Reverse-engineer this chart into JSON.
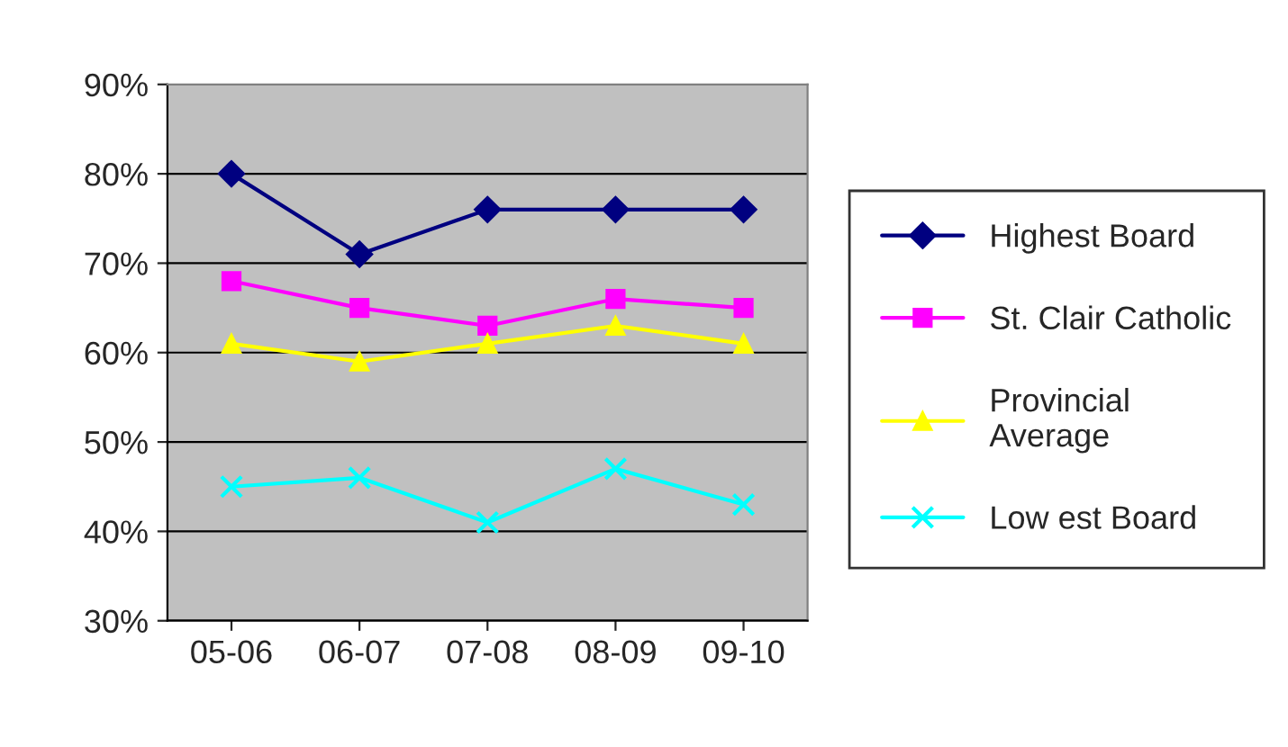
{
  "chart_data": {
    "type": "line",
    "categories": [
      "05-06",
      "06-07",
      "07-08",
      "08-09",
      "09-10"
    ],
    "series": [
      {
        "name": "Highest Board",
        "color": "#000080",
        "marker": "diamond",
        "values": [
          80,
          71,
          76,
          76,
          76
        ]
      },
      {
        "name": "St. Clair Catholic",
        "color": "#ff00ff",
        "marker": "square",
        "values": [
          68,
          65,
          63,
          66,
          65
        ]
      },
      {
        "name": "Provincial\nAverage",
        "color": "#ffff00",
        "marker": "triangle",
        "values": [
          61,
          59,
          61,
          63,
          61
        ]
      },
      {
        "name": "Low est Board",
        "color": "#00ffff",
        "marker": "cross",
        "values": [
          45,
          46,
          41,
          47,
          43
        ]
      }
    ],
    "ylim": [
      30,
      90
    ],
    "yticks": [
      {
        "value": 30,
        "label": "30%"
      },
      {
        "value": 40,
        "label": "40%"
      },
      {
        "value": 50,
        "label": "50%"
      },
      {
        "value": 60,
        "label": "60%"
      },
      {
        "value": 70,
        "label": "70%"
      },
      {
        "value": 80,
        "label": "80%"
      },
      {
        "value": 90,
        "label": "90%"
      }
    ],
    "grid": "y",
    "legend": "right",
    "line_style": "solid"
  }
}
